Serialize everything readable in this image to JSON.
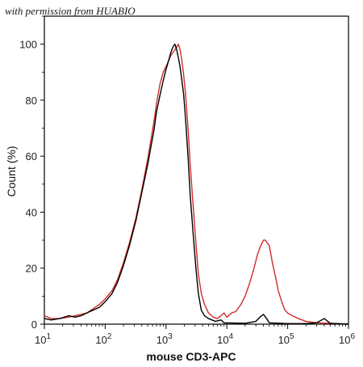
{
  "watermark": "with permission from HUABIO",
  "chart_data": {
    "type": "line",
    "title": "",
    "xlabel": "mouse CD3-APC",
    "ylabel": "Count (%)",
    "xscale": "log",
    "xlim": [
      10,
      1000000
    ],
    "ylim": [
      0,
      110
    ],
    "x_ticks": [
      {
        "value": 10,
        "base": "10",
        "exp": "1"
      },
      {
        "value": 100,
        "base": "10",
        "exp": "2"
      },
      {
        "value": 1000,
        "base": "10",
        "exp": "3"
      },
      {
        "value": 10000,
        "base": "10",
        "exp": "4"
      },
      {
        "value": 100000,
        "base": "10",
        "exp": "5"
      },
      {
        "value": 1000000,
        "base": "10",
        "exp": "6"
      }
    ],
    "y_ticks": [
      "0",
      "20",
      "40",
      "60",
      "80",
      "100"
    ],
    "grid": false,
    "legend": "none",
    "series": [
      {
        "color": "#000000",
        "points": [
          [
            10,
            2
          ],
          [
            13,
            1.5
          ],
          [
            18,
            2
          ],
          [
            25,
            3
          ],
          [
            32,
            2.5
          ],
          [
            40,
            3
          ],
          [
            50,
            4
          ],
          [
            63,
            5
          ],
          [
            80,
            6
          ],
          [
            100,
            8
          ],
          [
            130,
            11
          ],
          [
            160,
            15
          ],
          [
            200,
            21
          ],
          [
            250,
            28
          ],
          [
            320,
            37
          ],
          [
            400,
            47
          ],
          [
            500,
            57
          ],
          [
            630,
            69
          ],
          [
            700,
            76
          ],
          [
            800,
            82
          ],
          [
            900,
            87
          ],
          [
            1000,
            91
          ],
          [
            1100,
            94
          ],
          [
            1200,
            97
          ],
          [
            1300,
            99
          ],
          [
            1400,
            100
          ],
          [
            1500,
            98
          ],
          [
            1600,
            95
          ],
          [
            1700,
            92
          ],
          [
            1800,
            88
          ],
          [
            1950,
            82
          ],
          [
            2100,
            73
          ],
          [
            2300,
            60
          ],
          [
            2500,
            46
          ],
          [
            2800,
            32
          ],
          [
            3100,
            20
          ],
          [
            3400,
            11
          ],
          [
            3800,
            5
          ],
          [
            4300,
            3
          ],
          [
            5000,
            2
          ],
          [
            6500,
            1
          ],
          [
            8000,
            1.5
          ],
          [
            9000,
            0.5
          ],
          [
            12000,
            0.4
          ],
          [
            20000,
            0.3
          ],
          [
            30000,
            1
          ],
          [
            35000,
            2.5
          ],
          [
            40000,
            3.5
          ],
          [
            45000,
            2
          ],
          [
            50000,
            0.5
          ],
          [
            100000,
            0.2
          ],
          [
            200000,
            0.2
          ],
          [
            300000,
            0.5
          ],
          [
            400000,
            2
          ],
          [
            500000,
            0.3
          ],
          [
            1000000,
            0
          ]
        ]
      },
      {
        "color": "#d42a2a",
        "points": [
          [
            10,
            3
          ],
          [
            13,
            2
          ],
          [
            18,
            2
          ],
          [
            25,
            2.5
          ],
          [
            32,
            3
          ],
          [
            40,
            3.5
          ],
          [
            50,
            4
          ],
          [
            63,
            5.5
          ],
          [
            80,
            7
          ],
          [
            100,
            9
          ],
          [
            130,
            12
          ],
          [
            160,
            16
          ],
          [
            200,
            22
          ],
          [
            250,
            29
          ],
          [
            320,
            38
          ],
          [
            400,
            48
          ],
          [
            500,
            59
          ],
          [
            630,
            72
          ],
          [
            700,
            79
          ],
          [
            800,
            86
          ],
          [
            900,
            90
          ],
          [
            1000,
            92
          ],
          [
            1100,
            94
          ],
          [
            1200,
            96
          ],
          [
            1300,
            97
          ],
          [
            1400,
            98
          ],
          [
            1500,
            99
          ],
          [
            1600,
            100
          ],
          [
            1700,
            98
          ],
          [
            1800,
            95
          ],
          [
            1950,
            89
          ],
          [
            2100,
            82
          ],
          [
            2300,
            70
          ],
          [
            2500,
            57
          ],
          [
            2800,
            42
          ],
          [
            3100,
            29
          ],
          [
            3400,
            18
          ],
          [
            3800,
            11
          ],
          [
            4300,
            7
          ],
          [
            5000,
            4
          ],
          [
            6000,
            2.5
          ],
          [
            7000,
            2
          ],
          [
            8000,
            3
          ],
          [
            9000,
            4
          ],
          [
            10000,
            2.5
          ],
          [
            12000,
            4
          ],
          [
            14000,
            4.5
          ],
          [
            17000,
            7
          ],
          [
            20000,
            10
          ],
          [
            24000,
            15
          ],
          [
            28000,
            20
          ],
          [
            32000,
            25
          ],
          [
            36000,
            28
          ],
          [
            40000,
            30
          ],
          [
            43000,
            30
          ],
          [
            46000,
            29
          ],
          [
            50000,
            28
          ],
          [
            56000,
            22
          ],
          [
            63000,
            17
          ],
          [
            70000,
            12
          ],
          [
            80000,
            8
          ],
          [
            90000,
            5
          ],
          [
            100000,
            4
          ],
          [
            120000,
            3
          ],
          [
            150000,
            2
          ],
          [
            200000,
            1
          ],
          [
            300000,
            0.5
          ],
          [
            500000,
            0.3
          ],
          [
            1000000,
            0
          ]
        ]
      }
    ]
  }
}
